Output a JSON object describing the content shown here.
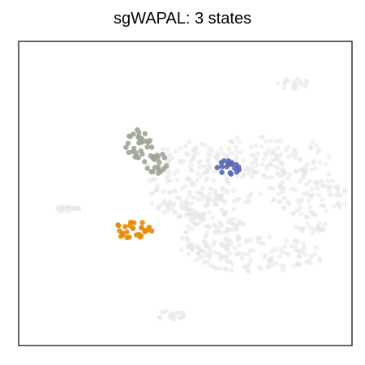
{
  "chart_data": {
    "type": "scatter",
    "title": "sgWAPAL: 3 states",
    "xlabel": "",
    "ylabel": "",
    "grid": false,
    "legend": "none",
    "background_points_color": "#e5e5e5",
    "series": [
      {
        "role": "background",
        "color": "#e5e5e5",
        "regions": [
          {
            "cx": 0.5,
            "cy": 0.545,
            "rx": 0.13,
            "ry": 0.13
          },
          {
            "cx": 0.73,
            "cy": 0.62,
            "rx": 0.22,
            "ry": 0.07
          },
          {
            "cx": 0.87,
            "cy": 0.5,
            "rx": 0.12,
            "ry": 0.08
          },
          {
            "cx": 0.58,
            "cy": 0.38,
            "rx": 0.1,
            "ry": 0.1
          },
          {
            "cx": 0.7,
            "cy": 0.3,
            "rx": 0.22,
            "ry": 0.06
          },
          {
            "cx": 0.65,
            "cy": 0.49,
            "rx": 0.09,
            "ry": 0.02
          },
          {
            "cx": 0.88,
            "cy": 0.39,
            "rx": 0.05,
            "ry": 0.02
          },
          {
            "cx": 0.53,
            "cy": 0.45,
            "rx": 0.03,
            "ry": 0.06
          },
          {
            "cx": 0.14,
            "cy": 0.45,
            "rx": 0.04,
            "ry": 0.01
          },
          {
            "cx": 0.825,
            "cy": 0.86,
            "rx": 0.05,
            "ry": 0.02
          },
          {
            "cx": 0.45,
            "cy": 0.1,
            "rx": 0.05,
            "ry": 0.015
          }
        ]
      },
      {
        "role": "state",
        "color": "#9ea596",
        "regions": [
          {
            "cx": 0.36,
            "cy": 0.66,
            "rx": 0.04,
            "ry": 0.05
          },
          {
            "cx": 0.41,
            "cy": 0.6,
            "rx": 0.035,
            "ry": 0.04
          }
        ]
      },
      {
        "role": "state",
        "color": "#5966b6",
        "regions": [
          {
            "cx": 0.625,
            "cy": 0.585,
            "rx": 0.04,
            "ry": 0.027
          }
        ]
      },
      {
        "role": "state",
        "color": "#e58b05",
        "regions": [
          {
            "cx": 0.345,
            "cy": 0.38,
            "rx": 0.06,
            "ry": 0.028
          }
        ]
      }
    ]
  }
}
